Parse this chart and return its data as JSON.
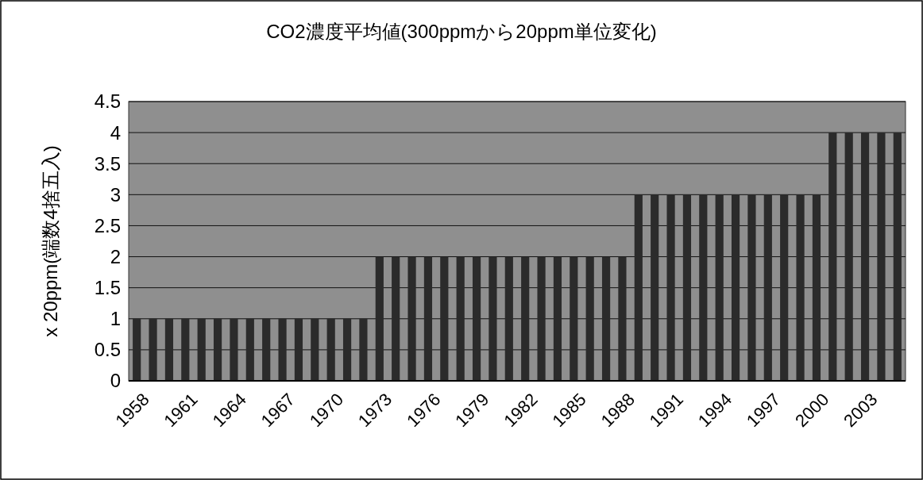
{
  "chart_data": {
    "type": "bar",
    "title": "CO2濃度平均値(300ppmから20ppm単位変化)",
    "ylabel": "x 20ppm(端数4捨五入)",
    "categories": [
      "1958",
      null,
      null,
      "1961",
      null,
      null,
      "1964",
      null,
      null,
      "1967",
      null,
      null,
      "1970",
      null,
      null,
      "1973",
      null,
      null,
      "1976",
      null,
      null,
      "1979",
      null,
      null,
      "1982",
      null,
      null,
      "1985",
      null,
      null,
      "1988",
      null,
      null,
      "1991",
      null,
      null,
      "1994",
      null,
      null,
      "1997",
      null,
      null,
      "2000",
      null,
      null,
      "2003",
      null,
      null
    ],
    "values": [
      1,
      1,
      1,
      1,
      1,
      1,
      1,
      1,
      1,
      1,
      1,
      1,
      1,
      1,
      1,
      2,
      2,
      2,
      2,
      2,
      2,
      2,
      2,
      2,
      2,
      2,
      2,
      2,
      2,
      2,
      2,
      3,
      3,
      3,
      3,
      3,
      3,
      3,
      3,
      3,
      3,
      3,
      3,
      4,
      4,
      4,
      4,
      4
    ],
    "color": "#2b2b2b",
    "ylim": [
      0,
      4.5
    ],
    "yticks": [
      0,
      0.5,
      1,
      1.5,
      2,
      2.5,
      3,
      3.5,
      4,
      4.5
    ],
    "grid": "y"
  }
}
